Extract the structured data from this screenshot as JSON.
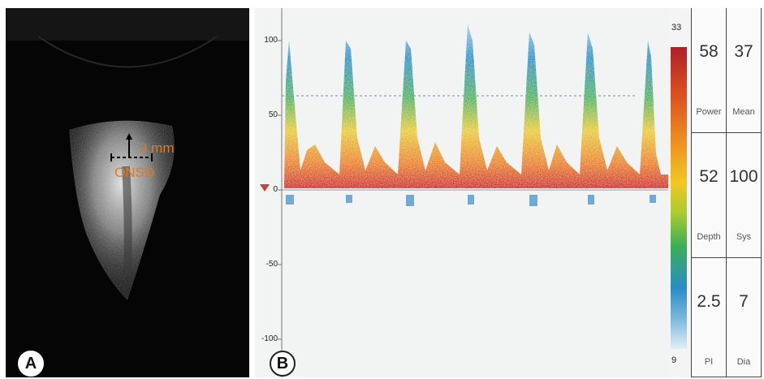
{
  "panel_a": {
    "label": "A",
    "measurement": "3 mm",
    "structure": "ONSD"
  },
  "panel_b": {
    "label": "B",
    "y_ticks": [
      "100",
      "50",
      "0",
      "-50",
      "-100"
    ],
    "colorbar": {
      "max": "33",
      "min": "9"
    },
    "readouts": [
      {
        "value": "58",
        "label": "Power"
      },
      {
        "value": "37",
        "label": "Mean"
      },
      {
        "value": "52",
        "label": "Depth"
      },
      {
        "value": "100",
        "label": "Sys"
      },
      {
        "value": "2.5",
        "label": "PI"
      },
      {
        "value": "7",
        "label": "Dia"
      }
    ]
  },
  "colors": {
    "annotation": "#e07a1f",
    "spectrum_high": "#b0202a",
    "spectrum_low": "#2a8cc8"
  }
}
